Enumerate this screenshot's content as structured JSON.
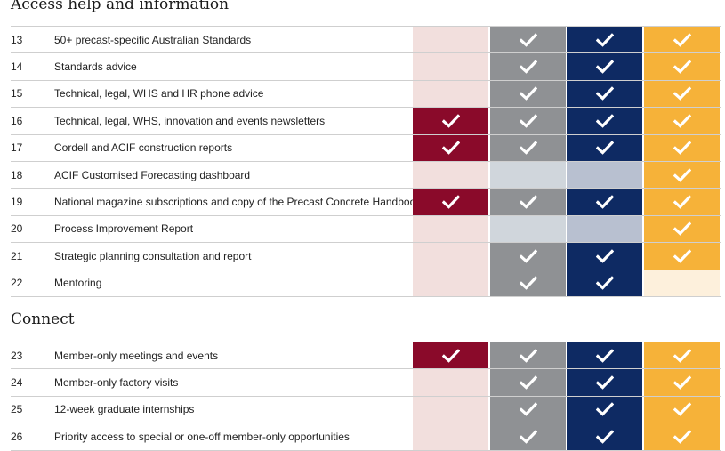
{
  "colors": {
    "col1_on": "#8a0a2a",
    "col1_off": "#f2dfdd",
    "col2_on": "#8f9194",
    "col2_off": "#d0d6dc",
    "col3_on": "#0e2a63",
    "col3_off": "#b8c0d0",
    "col4_on": "#f6b239",
    "col4_off": "#fdf0dc",
    "check": "#ffffff"
  },
  "icons": {
    "check": "checkmark-icon"
  },
  "sections": [
    {
      "title": "Access help and information",
      "rows": [
        {
          "num": "13",
          "label": "50+ precast-specific Australian Standards",
          "cells": [
            false,
            true,
            true,
            true
          ]
        },
        {
          "num": "14",
          "label": "Standards advice",
          "cells": [
            false,
            true,
            true,
            true
          ]
        },
        {
          "num": "15",
          "label": "Technical, legal, WHS and HR phone advice",
          "cells": [
            false,
            true,
            true,
            true
          ]
        },
        {
          "num": "16",
          "label": "Technical, legal, WHS, innovation and events newsletters",
          "cells": [
            true,
            true,
            true,
            true
          ]
        },
        {
          "num": "17",
          "label": "Cordell and ACIF construction reports",
          "cells": [
            true,
            true,
            true,
            true
          ]
        },
        {
          "num": "18",
          "label": "ACIF Customised Forecasting dashboard",
          "cells": [
            false,
            false,
            false,
            true
          ]
        },
        {
          "num": "19",
          "label": "National magazine subscriptions and copy of the Precast Concrete Handbook",
          "cells": [
            true,
            true,
            true,
            true
          ]
        },
        {
          "num": "20",
          "label": "Process Improvement Report",
          "cells": [
            false,
            false,
            false,
            true
          ]
        },
        {
          "num": "21",
          "label": "Strategic planning consultation and report",
          "cells": [
            false,
            true,
            true,
            true
          ]
        },
        {
          "num": "22",
          "label": "Mentoring",
          "cells": [
            false,
            true,
            true,
            false
          ]
        }
      ]
    },
    {
      "title": "Connect",
      "rows": [
        {
          "num": "23",
          "label": "Member-only meetings and events",
          "cells": [
            true,
            true,
            true,
            true
          ]
        },
        {
          "num": "24",
          "label": "Member-only factory visits",
          "cells": [
            false,
            true,
            true,
            true
          ]
        },
        {
          "num": "25",
          "label": "12-week graduate internships",
          "cells": [
            false,
            true,
            true,
            true
          ]
        },
        {
          "num": "26",
          "label": "Priority access to special or one-off member-only opportunities",
          "cells": [
            false,
            true,
            true,
            true
          ]
        }
      ]
    }
  ]
}
